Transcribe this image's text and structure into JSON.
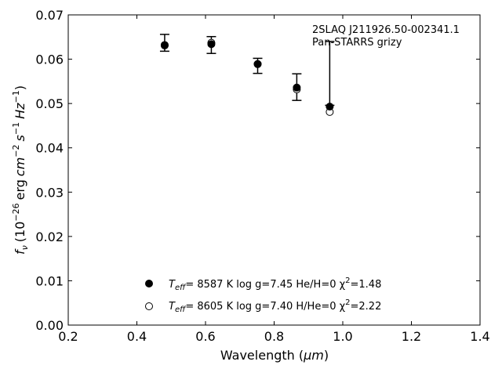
{
  "chart_data": {
    "type": "scatter",
    "xlabel_main": "Wavelength (",
    "xlabel_unit": "μm",
    "xlabel_close": ")",
    "ylabel_f": "f",
    "ylabel_nu": "ν",
    "ylabel_rest": "(10",
    "ylabel_exp1": "−26",
    "ylabel_erg": "erg",
    "ylabel_cm": "cm",
    "ylabel_exp2": "−2",
    "ylabel_s": "s",
    "ylabel_exp3": "−1",
    "ylabel_hz": "Hz",
    "ylabel_exp4": "−1",
    "ylabel_close": ")",
    "xlim": [
      0.2,
      1.4
    ],
    "ylim": [
      0.0,
      0.07
    ],
    "x_ticks": [
      "0.2",
      "0.4",
      "0.6",
      "0.8",
      "1.0",
      "1.2",
      "1.4"
    ],
    "y_ticks": [
      "0.00",
      "0.01",
      "0.02",
      "0.03",
      "0.04",
      "0.05",
      "0.06",
      "0.07"
    ],
    "annotation_line1": "2SLAQ J211926.50-002341.1",
    "annotation_line2": "Pan-STARRS grizy",
    "observed": {
      "x": [
        0.481,
        0.617,
        0.752,
        0.866,
        0.962
      ],
      "y": [
        0.0637,
        0.0632,
        0.0585,
        0.0537,
        0.0568
      ],
      "yerr": [
        0.0019,
        0.0019,
        0.0017,
        0.003,
        0.0072
      ]
    },
    "series": [
      {
        "legend_teff": "T",
        "legend_eff": "eff",
        "legend_text": "=  8587 K  log g=7.45  He/H=0  χ",
        "legend_sup": "2",
        "legend_chi": "=1.48",
        "marker": "filled",
        "x": [
          0.481,
          0.617,
          0.752,
          0.866,
          0.962
        ],
        "y": [
          0.0631,
          0.0634,
          0.0589,
          0.0536,
          0.0493
        ]
      },
      {
        "legend_teff": "T",
        "legend_eff": "eff",
        "legend_text": "=  8605 K  log g=7.40  H/He=0  χ",
        "legend_sup": "2",
        "legend_chi": "=2.22",
        "marker": "open",
        "x": [
          0.481,
          0.617,
          0.752,
          0.866,
          0.962
        ],
        "y": [
          0.0632,
          0.0637,
          0.0589,
          0.0532,
          0.0481
        ]
      }
    ],
    "legend_position": "bottom-center",
    "grid": false
  }
}
